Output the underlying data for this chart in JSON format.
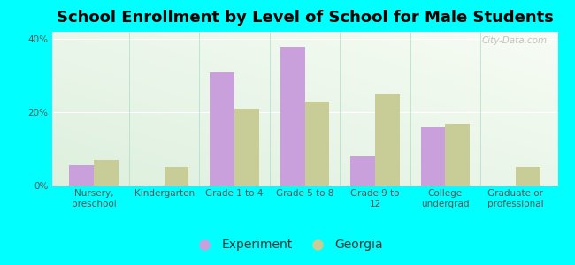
{
  "title": "School Enrollment by Level of School for Male Students",
  "categories": [
    "Nursery,\npreschool",
    "Kindergarten",
    "Grade 1 to 4",
    "Grade 5 to 8",
    "Grade 9 to\n12",
    "College\nundergrad",
    "Graduate or\nprofessional"
  ],
  "experiment_values": [
    5.5,
    0,
    31,
    38,
    8,
    16,
    0
  ],
  "georgia_values": [
    7,
    5,
    21,
    23,
    25,
    17,
    5
  ],
  "experiment_color": "#c9a0dc",
  "georgia_color": "#c8cc96",
  "background_color": "#00ffff",
  "title_fontsize": 13,
  "tick_fontsize": 7.5,
  "legend_fontsize": 10,
  "ylim": [
    0,
    42
  ],
  "yticks": [
    0,
    20,
    40
  ],
  "ytick_labels": [
    "0%",
    "20%",
    "40%"
  ],
  "bar_width": 0.35,
  "watermark": "City-Data.com"
}
